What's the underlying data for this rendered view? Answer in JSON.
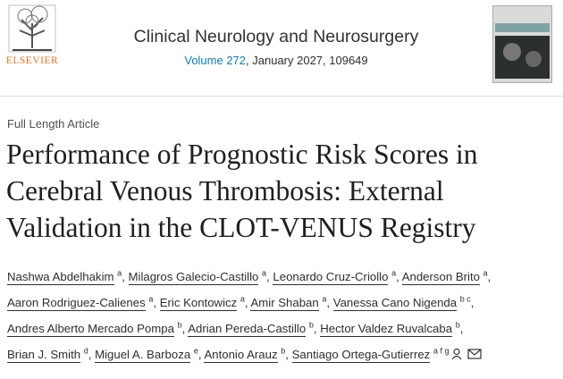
{
  "header": {
    "publisher": "ELSEVIER",
    "journal": "Clinical Neurology and Neurosurgery",
    "volume": "Volume 272",
    "issue_info": ", January 2027, 109649"
  },
  "article": {
    "type": "Full Length Article",
    "title_lines": [
      "Performance of Prognostic Risk Scores in",
      "Cerebral Venous Thrombosis: External",
      "Validation in the CLOT-VENUS Registry"
    ],
    "separator": ",",
    "authors": [
      {
        "name": "Nashwa Abdelhakim",
        "aff": "a"
      },
      {
        "name": "Milagros Galecio-Castillo",
        "aff": "a"
      },
      {
        "name": "Leonardo Cruz-Criollo",
        "aff": "a"
      },
      {
        "name": "Anderson Brito",
        "aff": "a"
      },
      {
        "name": "Aaron Rodriguez-Calienes",
        "aff": "a"
      },
      {
        "name": "Eric Kontowicz",
        "aff": "a"
      },
      {
        "name": "Amir Shaban",
        "aff": "a"
      },
      {
        "name": "Vanessa Cano Nigenda",
        "aff": "b c"
      },
      {
        "name": "Andres Alberto Mercado Pompa",
        "aff": "b"
      },
      {
        "name": "Adrian Pereda-Castillo",
        "aff": "b"
      },
      {
        "name": "Hector Valdez Ruvalcaba",
        "aff": "b"
      },
      {
        "name": "Brian J. Smith",
        "aff": "d"
      },
      {
        "name": "Miguel A. Barboza",
        "aff": "e"
      },
      {
        "name": "Antonio Arauz",
        "aff": "b"
      },
      {
        "name": "Santiago Ortega-Gutierrez",
        "aff": "a f g"
      }
    ]
  }
}
